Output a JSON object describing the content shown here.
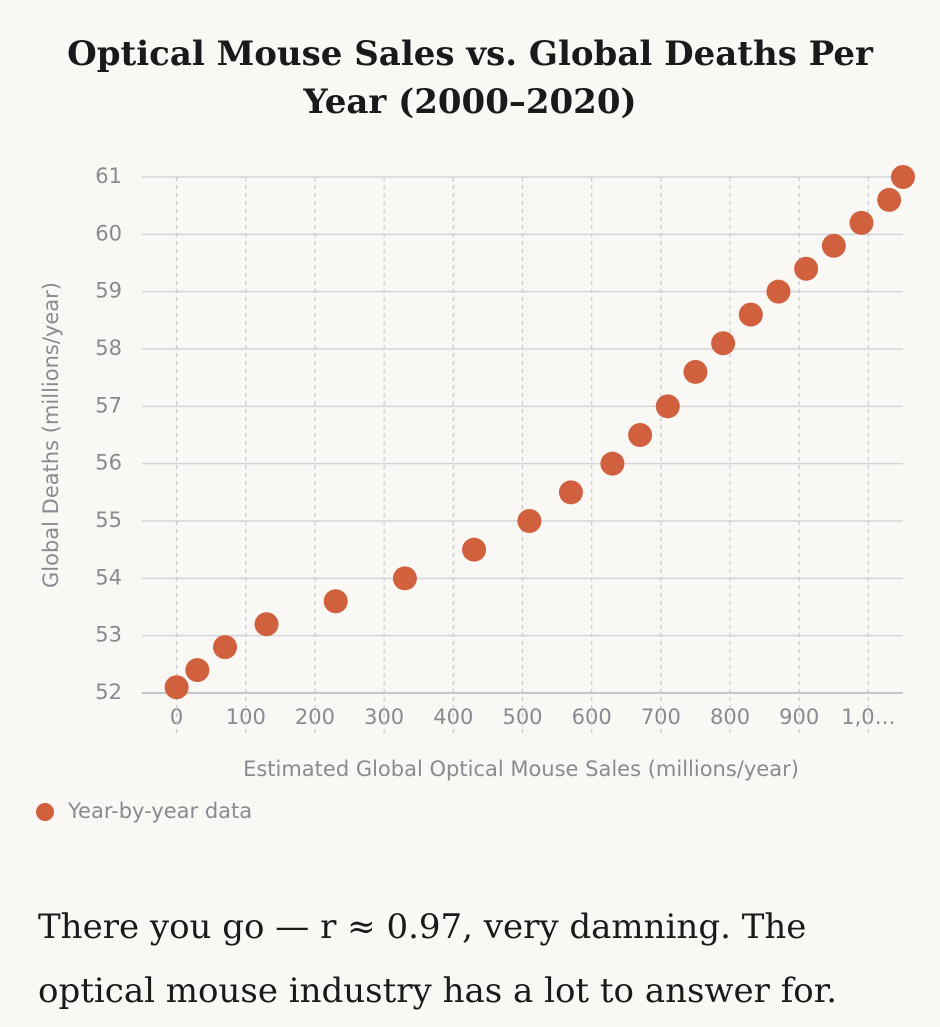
{
  "chart_data": {
    "type": "scatter",
    "title": "Optical Mouse Sales vs. Global Deaths Per Year (2000–2020)",
    "x_label": "Estimated Global Optical Mouse Sales (millions/year)",
    "y_label": "Global Deaths (millions/year)",
    "series": [
      {
        "name": "Year-by-year data",
        "color": "#d0603e",
        "x": [
          0,
          30,
          70,
          130,
          230,
          330,
          430,
          510,
          570,
          630,
          670,
          710,
          750,
          790,
          830,
          870,
          910,
          950,
          990,
          1030,
          1050
        ],
        "values": [
          52.1,
          52.4,
          52.8,
          53.2,
          53.6,
          54.0,
          54.5,
          55.0,
          55.5,
          56.0,
          56.5,
          57.0,
          57.6,
          58.1,
          58.6,
          59.0,
          59.4,
          59.8,
          60.2,
          60.6,
          61.0
        ]
      }
    ],
    "xlim": [
      -50,
      1050
    ],
    "xticks": [
      0,
      100,
      200,
      300,
      400,
      500,
      600,
      700,
      800,
      900,
      {
        "value": 1000,
        "label": "1,0…"
      }
    ],
    "ylim": [
      52,
      61
    ],
    "yticks": [
      52,
      53,
      54,
      55,
      56,
      57,
      58,
      59,
      60,
      61
    ],
    "grid": true
  },
  "message": "There you go — r ≈ 0.97, very damning. The optical mouse industry has a lot to answer for."
}
